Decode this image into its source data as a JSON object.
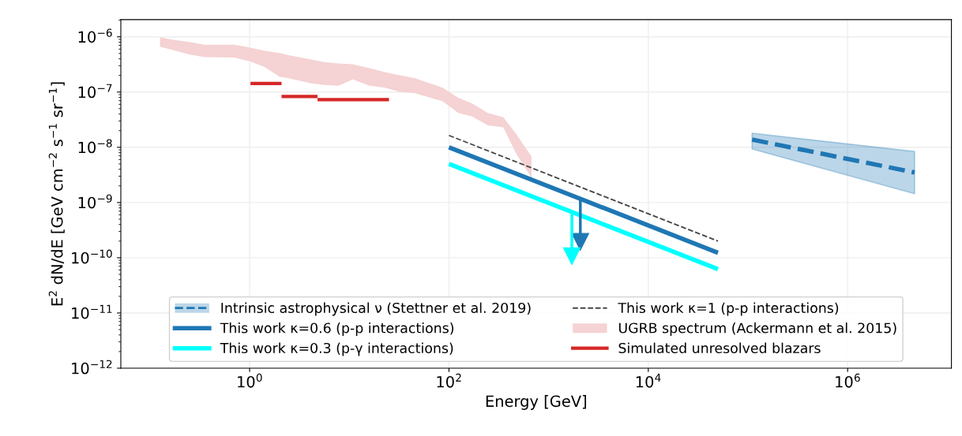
{
  "chart_data": {
    "type": "line",
    "xlabel": "Energy [GeV]",
    "ylabel": "E$^{2}$ dN/dE [GeV cm$^{−2}$ s$^{−1}$ sr$^{−1}$]",
    "log": "xy",
    "grid": true,
    "legend": "bottom",
    "xlim": [
      0.051,
      11000000
    ],
    "ylim": [
      1e-12,
      2.05e-06
    ],
    "xticks": [
      {
        "value": 1,
        "label": "10$^{0}$"
      },
      {
        "value": 100,
        "label": "10$^{2}$"
      },
      {
        "value": 10000,
        "label": "10$^{4}$"
      },
      {
        "value": 1000000,
        "label": "10$^{6}$"
      }
    ],
    "yticks": [
      {
        "value": 1e-12,
        "label": "10$^{−12}$"
      },
      {
        "value": 1e-11,
        "label": "10$^{−11}$"
      },
      {
        "value": 1e-10,
        "label": "10$^{−10}$"
      },
      {
        "value": 1e-09,
        "label": "10$^{−9}$"
      },
      {
        "value": 1e-08,
        "label": "10$^{−8}$"
      },
      {
        "value": 1e-07,
        "label": "10$^{−7}$"
      },
      {
        "value": 1e-06,
        "label": "10$^{−6}$"
      }
    ],
    "series": [
      {
        "name": "Intrinsic astrophysical ν (Stettner et al. 2019)",
        "line_style": "dashed",
        "color": "#1f77b4",
        "x": [
          110000,
          4700000
        ],
        "values": [
          1.38e-08,
          3.5e-09
        ],
        "lower": [
          9.3e-09,
          1.44e-09
        ],
        "upper": [
          1.8e-08,
          8.4e-09
        ]
      },
      {
        "name": "This work κ=0.6 (p-p interactions)",
        "line_style": "solid",
        "color": "#1f77b4",
        "x": [
          100,
          50000
        ],
        "values": [
          1e-08,
          1.23e-10
        ]
      },
      {
        "name": "This work κ=0.3 (p-γ interactions)",
        "line_style": "solid",
        "color": "#00ffff",
        "x": [
          100,
          50000
        ],
        "values": [
          5e-09,
          6.2e-11
        ]
      },
      {
        "name": "This work κ=1 (p-p interactions)",
        "line_style": "dashed",
        "color": "#444444",
        "x": [
          100,
          50000
        ],
        "values": [
          1.64e-08,
          2e-10
        ]
      },
      {
        "name": "UGRB spectrum (Ackermann et al. 2015)",
        "color": "#f5d2d3",
        "x": [
          0.126,
          0.167,
          0.247,
          0.353,
          0.7,
          1.0,
          1.39,
          1.99,
          2.41,
          4.06,
          5.6,
          7.8,
          10.8,
          16.0,
          22.8,
          32.6,
          45,
          86.5,
          124,
          171,
          245,
          351,
          471,
          673
        ],
        "values": [
          null,
          null,
          null,
          null,
          null,
          null,
          null,
          null,
          null,
          null,
          null,
          null,
          null,
          null,
          null,
          null,
          null,
          null,
          null,
          null,
          null,
          null,
          null,
          null
        ],
        "upper": [
          9.8e-07,
          8.9e-07,
          8.1e-07,
          7.2e-07,
          7.2e-07,
          6.4e-07,
          5.6e-07,
          5.1e-07,
          4.7e-07,
          3.9e-07,
          3.5e-07,
          3.3e-07,
          3.2e-07,
          2.7e-07,
          2.3e-07,
          2e-07,
          1.8e-07,
          1.2e-07,
          7.9e-08,
          6.2e-08,
          4.2e-08,
          3.5e-08,
          1.75e-08,
          6.8e-09
        ],
        "lower": [
          6.6e-07,
          5.8e-07,
          4.8e-07,
          4.3e-07,
          4.2e-07,
          3.6e-07,
          2.9e-07,
          1.9e-07,
          1.8e-07,
          1.45e-07,
          1.35e-07,
          1.3e-07,
          1.7e-07,
          1.3e-07,
          1.2e-07,
          1e-07,
          9.6e-08,
          6.8e-08,
          4.2e-08,
          3.6e-08,
          2.5e-08,
          2.3e-08,
          7.8e-09,
          2.8e-09
        ]
      },
      {
        "name": "Simulated unresolved blazars",
        "line_style": "solid",
        "color": "#d62728",
        "x": [
          1.02,
          2.09
        ],
        "values": [
          1.43e-07,
          1.43e-07
        ]
      },
      {
        "line_style": "solid",
        "color": "#d62728",
        "x": [
          2.09,
          4.8
        ],
        "values": [
          8.3e-08,
          8.3e-08
        ]
      },
      {
        "line_style": "solid",
        "color": "#d62728",
        "x": [
          4.8,
          11,
          25
        ],
        "values": [
          7.3e-08,
          7.3e-08,
          7.3e-08
        ]
      },
      {
        "line_style": "solid",
        "marker": "triangle",
        "color": "#1f77b4",
        "x": [
          2080,
          2080
        ],
        "values": [
          1.1e-09,
          1.95e-10
        ]
      },
      {
        "line_style": "solid",
        "marker": "triangle",
        "color": "#00ffff",
        "x": [
          1710,
          1710
        ],
        "values": [
          6.5e-10,
          1.07e-10
        ]
      }
    ]
  }
}
